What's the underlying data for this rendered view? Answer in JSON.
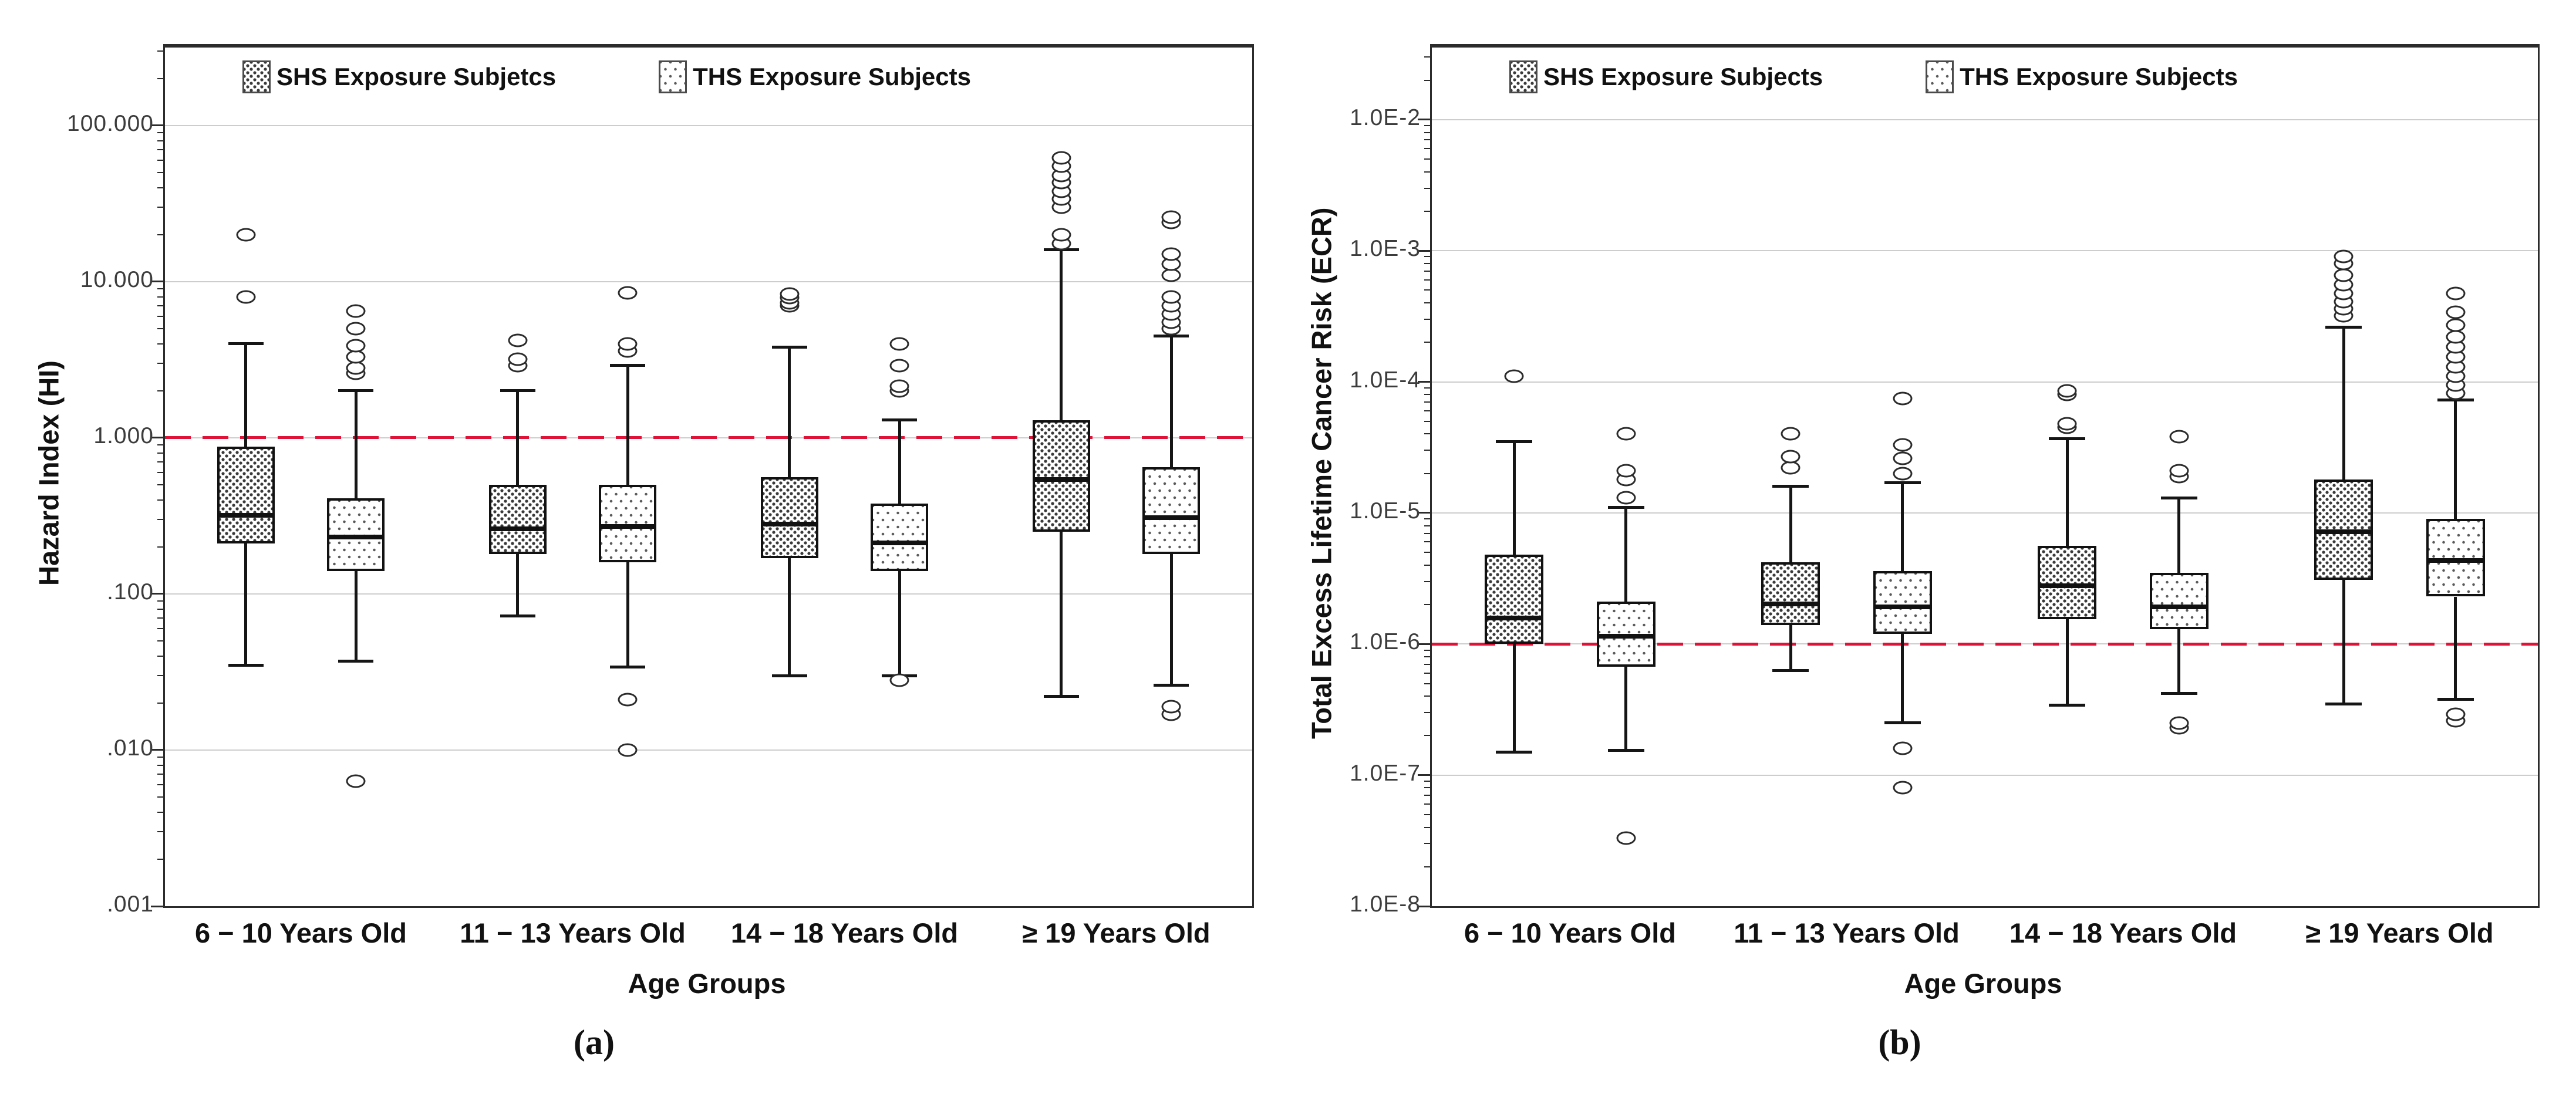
{
  "figure": {
    "caption_a": "(a)",
    "caption_b": "(b)",
    "colors": {
      "reference_line": "#df1238",
      "gridline": "#cdcdcd",
      "frame": "#2b2b2b",
      "box_fill": "#ffffff",
      "box_stroke": "#111111"
    }
  },
  "chart_data": [
    {
      "type": "boxplot",
      "panel": "a",
      "ylabel": "Hazard Index (HI)",
      "xlabel": "Age Groups",
      "yscale": "log",
      "ylim": [
        0.001,
        316
      ],
      "grid": "horizontal-major",
      "legend_position": "top-left-inside",
      "reference_line": 1.0,
      "yticks": [
        {
          "v": 100,
          "label": "100.000"
        },
        {
          "v": 10,
          "label": "10.000"
        },
        {
          "v": 1,
          "label": "1.000"
        },
        {
          "v": 0.1,
          "label": ".100"
        },
        {
          "v": 0.01,
          "label": ".010"
        },
        {
          "v": 0.001,
          "label": ".001"
        }
      ],
      "categories": [
        "6 − 10 Years Old",
        "11 − 13 Years Old",
        "14 − 18 Years Old",
        "≥ 19 Years Old"
      ],
      "legend": [
        "SHS Exposure Subjetcs",
        "THS Exposure Subjects"
      ],
      "series": [
        {
          "name": "SHS Exposure Subjetcs",
          "pattern": "shs",
          "boxes": [
            {
              "whislo": 0.035,
              "q1": 0.21,
              "med": 0.33,
              "q3": 0.88,
              "whishi": 4.0,
              "fliers": [
                8,
                20
              ]
            },
            {
              "whislo": 0.072,
              "q1": 0.18,
              "med": 0.27,
              "q3": 0.5,
              "whishi": 2.0,
              "fliers": [
                2.9,
                3.2,
                4.2
              ]
            },
            {
              "whislo": 0.03,
              "q1": 0.17,
              "med": 0.29,
              "q3": 0.56,
              "whishi": 3.8,
              "fliers": [
                7.0,
                7.3,
                7.9,
                8.3
              ]
            },
            {
              "whislo": 0.022,
              "q1": 0.25,
              "med": 0.56,
              "q3": 1.3,
              "whishi": 16,
              "fliers": [
                17.5,
                20,
                30,
                34,
                38,
                43,
                48,
                55,
                62
              ]
            }
          ]
        },
        {
          "name": "THS Exposure Subjects",
          "pattern": "ths",
          "boxes": [
            {
              "whislo": 0.037,
              "q1": 0.14,
              "med": 0.24,
              "q3": 0.41,
              "whishi": 2.0,
              "fliers": [
                2.6,
                2.8,
                3.3,
                3.9,
                5.0,
                6.5,
                0.0063
              ]
            },
            {
              "whislo": 0.034,
              "q1": 0.16,
              "med": 0.28,
              "q3": 0.5,
              "whishi": 2.9,
              "fliers": [
                3.6,
                4.0,
                8.5,
                0.021,
                0.01
              ]
            },
            {
              "whislo": 0.03,
              "q1": 0.14,
              "med": 0.22,
              "q3": 0.38,
              "whishi": 1.3,
              "fliers": [
                2.0,
                2.15,
                2.9,
                4.0,
                0.028
              ]
            },
            {
              "whislo": 0.026,
              "q1": 0.18,
              "med": 0.32,
              "q3": 0.65,
              "whishi": 4.5,
              "fliers": [
                5.0,
                5.5,
                6.2,
                7.0,
                8.0,
                11,
                13,
                15,
                24,
                26,
                0.017,
                0.019
              ]
            }
          ]
        }
      ]
    },
    {
      "type": "boxplot",
      "panel": "b",
      "ylabel": "Total Excess Lifetime Cancer Risk (ECR)",
      "xlabel": "Age Groups",
      "yscale": "log",
      "ylim": [
        1e-08,
        0.0355
      ],
      "grid": "horizontal-major",
      "legend_position": "top-left-inside",
      "reference_line": 1e-06,
      "yticks": [
        {
          "v": 0.01,
          "label": "1.0E-2"
        },
        {
          "v": 0.001,
          "label": "1.0E-3"
        },
        {
          "v": 0.0001,
          "label": "1.0E-4"
        },
        {
          "v": 1e-05,
          "label": "1.0E-5"
        },
        {
          "v": 1e-06,
          "label": "1.0E-6"
        },
        {
          "v": 1e-07,
          "label": "1.0E-7"
        },
        {
          "v": 1e-08,
          "label": "1.0E-8"
        }
      ],
      "categories": [
        "6 − 10 Years Old",
        "11 − 13 Years Old",
        "14 − 18 Years Old",
        "≥ 19 Years Old"
      ],
      "legend": [
        "SHS Exposure Subjects",
        "THS Exposure Subjects"
      ],
      "series": [
        {
          "name": "SHS Exposure Subjects",
          "pattern": "shs",
          "boxes": [
            {
              "whislo": 1.5e-07,
              "q1": 1e-06,
              "med": 1.65e-06,
              "q3": 4.8e-06,
              "whishi": 3.5e-05,
              "fliers": [
                0.00011
              ]
            },
            {
              "whislo": 6.3e-07,
              "q1": 1.4e-06,
              "med": 2.1e-06,
              "q3": 4.2e-06,
              "whishi": 1.6e-05,
              "fliers": [
                2.2e-05,
                2.7e-05,
                4e-05
              ]
            },
            {
              "whislo": 3.4e-07,
              "q1": 1.55e-06,
              "med": 2.9e-06,
              "q3": 5.6e-06,
              "whishi": 3.7e-05,
              "fliers": [
                4.5e-05,
                4.8e-05,
                8e-05,
                8.5e-05
              ]
            },
            {
              "whislo": 3.5e-07,
              "q1": 3.1e-06,
              "med": 7.5e-06,
              "q3": 1.8e-05,
              "whishi": 0.00026,
              "fliers": [
                0.00032,
                0.00036,
                0.00041,
                0.00047,
                0.00055,
                0.00065,
                0.0008,
                0.0009
              ]
            }
          ]
        },
        {
          "name": "THS Exposure Subjects",
          "pattern": "ths",
          "boxes": [
            {
              "whislo": 1.55e-07,
              "q1": 6.7e-07,
              "med": 1.2e-06,
              "q3": 2.1e-06,
              "whishi": 1.1e-05,
              "fliers": [
                1.3e-05,
                1.8e-05,
                2.1e-05,
                4e-05,
                3.3e-08
              ]
            },
            {
              "whislo": 2.5e-07,
              "q1": 1.2e-06,
              "med": 2e-06,
              "q3": 3.6e-06,
              "whishi": 1.7e-05,
              "fliers": [
                2e-05,
                2.6e-05,
                3.3e-05,
                7.5e-05,
                1.6e-07,
                8e-08
              ]
            },
            {
              "whislo": 4.2e-07,
              "q1": 1.3e-06,
              "med": 2e-06,
              "q3": 3.5e-06,
              "whishi": 1.3e-05,
              "fliers": [
                1.9e-05,
                2.1e-05,
                3.8e-05,
                2.3e-07,
                2.5e-07
              ]
            },
            {
              "whislo": 3.8e-07,
              "q1": 2.3e-06,
              "med": 4.5e-06,
              "q3": 9e-06,
              "whishi": 7.3e-05,
              "fliers": [
                8.2e-05,
                9.5e-05,
                0.00011,
                0.00013,
                0.000155,
                0.000185,
                0.00022,
                0.00027,
                0.00034,
                0.00047,
                2.6e-07,
                2.9e-07
              ]
            }
          ]
        }
      ]
    }
  ]
}
